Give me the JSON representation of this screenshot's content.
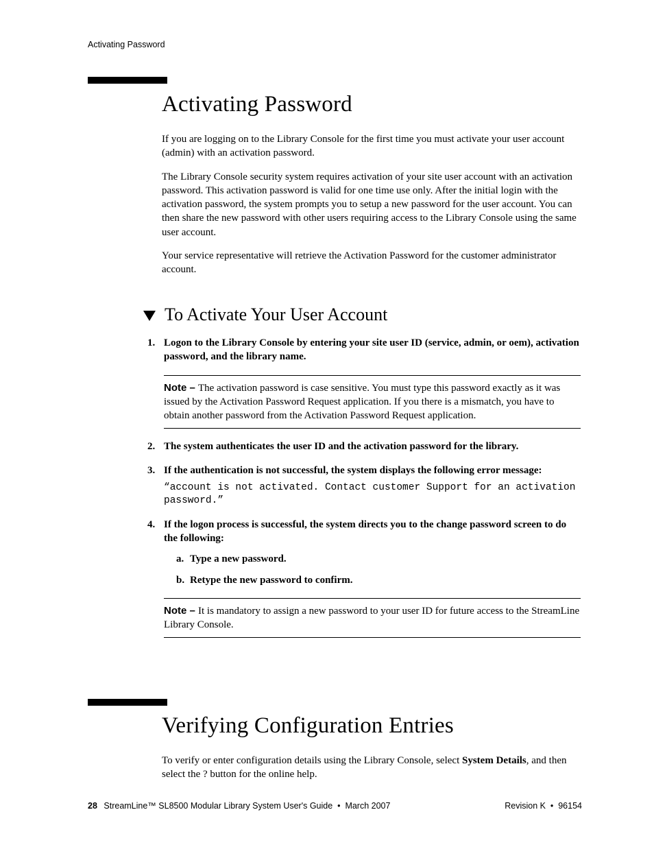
{
  "running_head": "Activating Password",
  "section1": {
    "title": "Activating Password",
    "p1": "If you are logging on to the Library Console for the first time you must activate your user account (admin) with an activation password.",
    "p2": "The Library Console security system requires activation of your site user account with an activation password. This activation password is valid for one time use only. After the initial login with the activation password, the system prompts you to setup a new password for the user account. You can then share the new password with other users requiring access to the Library Console using the same user account.",
    "p3": "Your service representative will retrieve the Activation Password for the customer administrator account."
  },
  "subhead": "To Activate Your User Account",
  "steps": {
    "s1": "Logon to the Library Console by entering your site user ID (service, admin, or oem), activation password, and the library name.",
    "note1_label": "Note – ",
    "note1_text": "The activation password is case sensitive. You must type this password exactly as it was issued by the Activation Password Request application. If you there is a mismatch, you have to obtain another password from the Activation Password Request application.",
    "s2": "The system authenticates the user ID and the activation password for the library.",
    "s3": "If the authentication is not successful, the system displays the following error message:",
    "code": "“account is not activated. Contact customer Support for an activation password.”",
    "s4": "If the logon process is successful, the system directs you to the change password screen to do the following:",
    "s4a": "Type a new password.",
    "s4b": "Retype the new password to confirm.",
    "note2_label": "Note – ",
    "note2_text": "It is mandatory to assign a new password to your user ID for future access to the StreamLine Library Console."
  },
  "section2": {
    "title": "Verifying Configuration Entries",
    "p1_a": "To verify or enter configuration details using the Library Console, select ",
    "p1_b": "System Details",
    "p1_c": ", and then select the ? button for the online help."
  },
  "footer": {
    "page_num": "28",
    "left_text": "StreamLine™ SL8500 Modular Library System User's Guide  •  March 2007",
    "right_text": "Revision K  •  96154"
  }
}
